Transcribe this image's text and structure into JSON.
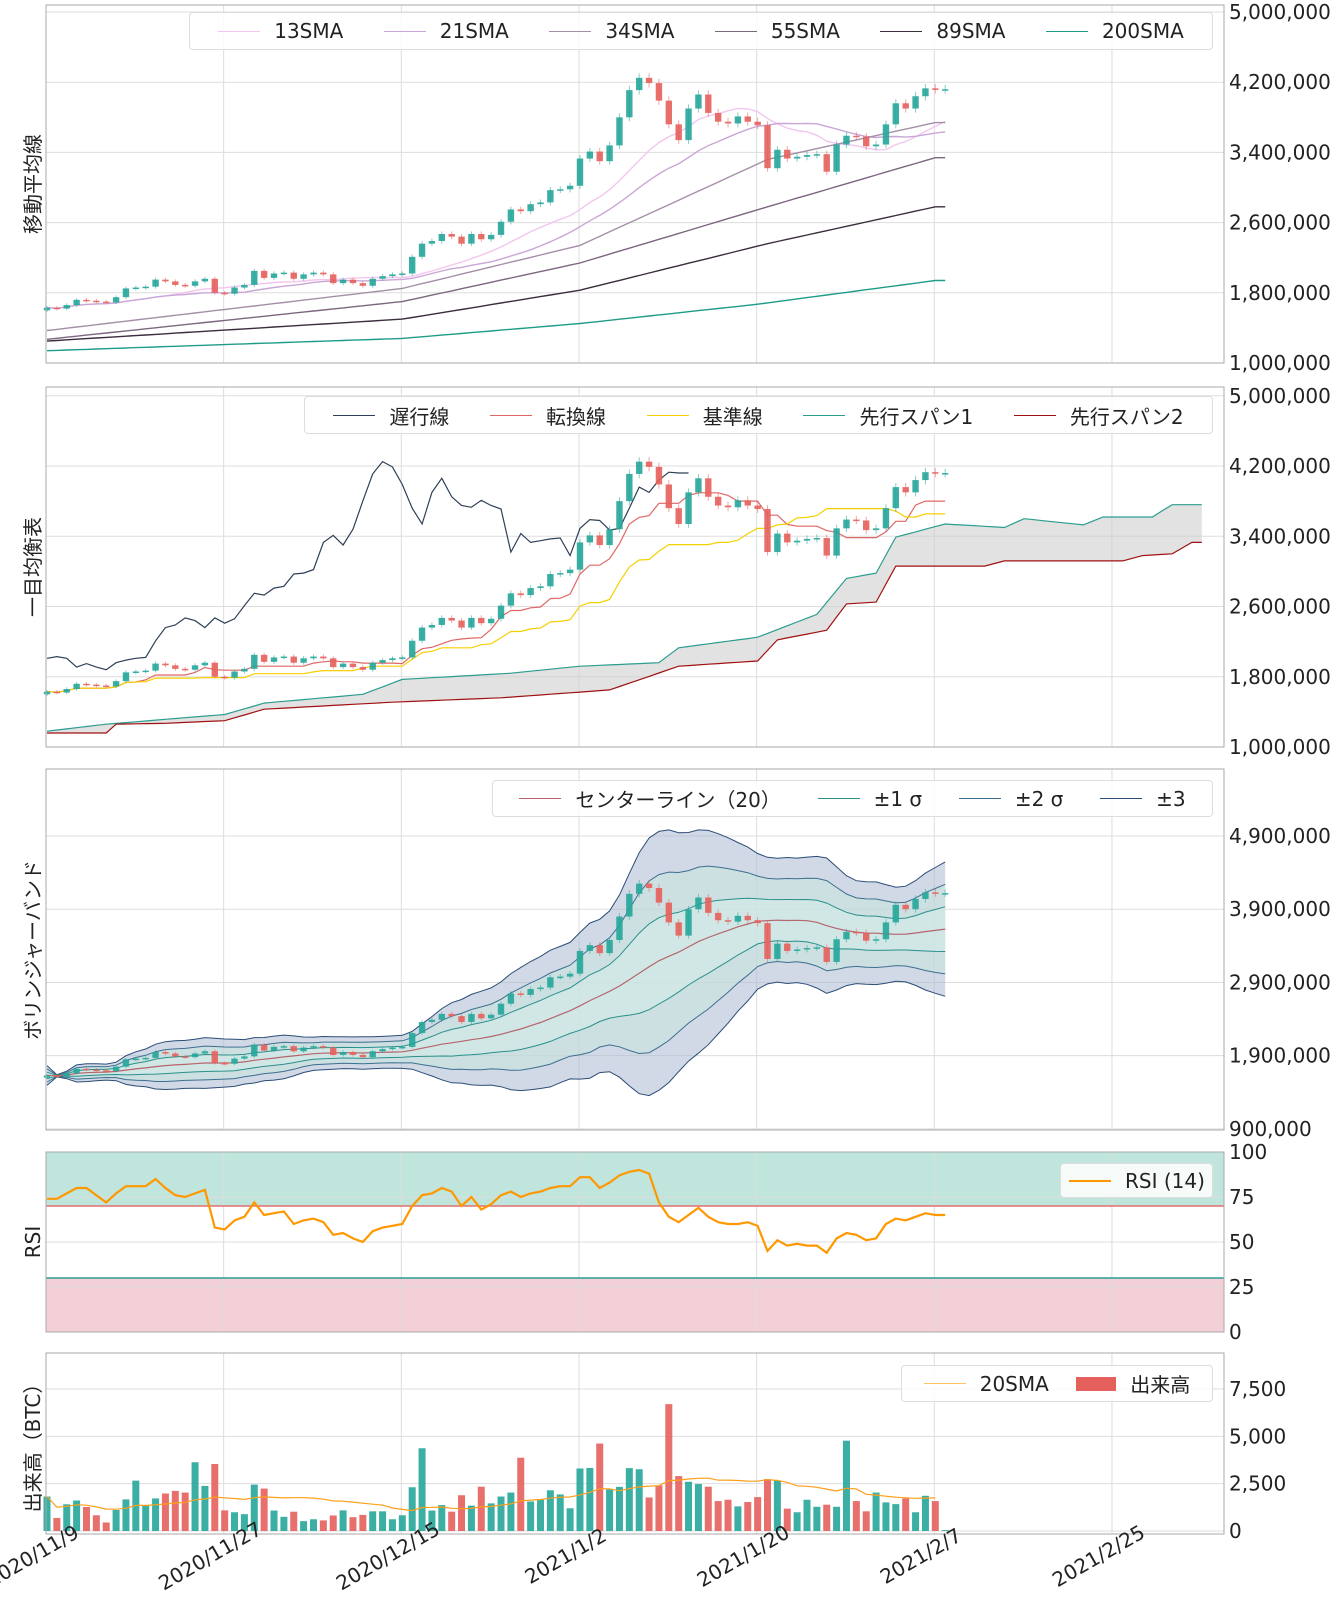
{
  "x_axis": {
    "ticks": [
      "2020/11/9",
      "2020/11/27",
      "2020/12/15",
      "2021/1/2",
      "2021/1/20",
      "2021/2/7",
      "2021/2/25"
    ],
    "xlim": [
      "2020/11/9",
      "2021/3/8"
    ]
  },
  "colors": {
    "up": "#26a69a",
    "down": "#e5605c",
    "grid": "#dddddd"
  },
  "chart_data": [
    {
      "type": "candlestick",
      "ylabel": "移動平均線",
      "yticks": [
        5000000,
        4200000,
        3400000,
        2600000,
        1800000,
        1000000
      ],
      "ylim": [
        1000000,
        5080000
      ],
      "grid": true,
      "legend_position": "top-right",
      "legend": [
        {
          "label": "13SMA",
          "color": "#f2c6f0"
        },
        {
          "label": "21SMA",
          "color": "#c9a6d6"
        },
        {
          "label": "34SMA",
          "color": "#a58fa8"
        },
        {
          "label": "55SMA",
          "color": "#7d6680"
        },
        {
          "label": "89SMA",
          "color": "#3a2d3c"
        },
        {
          "label": "200SMA",
          "color": "#1e9c88"
        }
      ],
      "candles": {
        "first_open": 1600000,
        "close": [
          1630000,
          1620000,
          1660000,
          1720000,
          1710000,
          1700000,
          1690000,
          1750000,
          1850000,
          1860000,
          1870000,
          1950000,
          1930000,
          1890000,
          1880000,
          1930000,
          1960000,
          1800000,
          1790000,
          1860000,
          1890000,
          2050000,
          1970000,
          2020000,
          2030000,
          1960000,
          2010000,
          2030000,
          2010000,
          1910000,
          1950000,
          1910000,
          1880000,
          1960000,
          1990000,
          2010000,
          2020000,
          2210000,
          2360000,
          2390000,
          2470000,
          2440000,
          2360000,
          2470000,
          2410000,
          2460000,
          2610000,
          2750000,
          2730000,
          2810000,
          2830000,
          2970000,
          2980000,
          3020000,
          3330000,
          3410000,
          3300000,
          3480000,
          3800000,
          4110000,
          4250000,
          4190000,
          3990000,
          3720000,
          3540000,
          3900000,
          4060000,
          3850000,
          3750000,
          3730000,
          3810000,
          3750000,
          3710000,
          3220000,
          3430000,
          3330000,
          3350000,
          3370000,
          3380000,
          3180000,
          3490000,
          3590000,
          3580000,
          3470000,
          3490000,
          3720000,
          3960000,
          3900000,
          4040000,
          4130000,
          4120000,
          4120000
        ]
      },
      "sma_anchors": {
        "34SMA": [
          [
            "2020/11/9",
            1370000
          ],
          [
            "2020/12/15",
            1850000
          ],
          [
            "2021/1/2",
            2340000
          ],
          [
            "2021/1/21",
            3320000
          ],
          [
            "2021/2/7",
            3740000
          ]
        ],
        "55SMA": [
          [
            "2020/11/9",
            1270000
          ],
          [
            "2020/12/15",
            1700000
          ],
          [
            "2021/1/2",
            2140000
          ],
          [
            "2021/1/21",
            2780000
          ],
          [
            "2021/2/7",
            3340000
          ]
        ],
        "89SMA": [
          [
            "2020/11/9",
            1250000
          ],
          [
            "2020/12/15",
            1500000
          ],
          [
            "2021/1/2",
            1830000
          ],
          [
            "2021/1/21",
            2360000
          ],
          [
            "2021/2/7",
            2780000
          ]
        ],
        "200SMA": [
          [
            "2020/11/9",
            1140000
          ],
          [
            "2020/12/15",
            1280000
          ],
          [
            "2021/1/2",
            1450000
          ],
          [
            "2021/1/20",
            1670000
          ],
          [
            "2021/2/7",
            1940000
          ]
        ]
      }
    },
    {
      "type": "candlestick",
      "ylabel": "一目均衡表",
      "yticks": [
        5000000,
        4200000,
        3400000,
        2600000,
        1800000,
        1000000
      ],
      "ylim": [
        1000000,
        5100000
      ],
      "grid": true,
      "legend_position": "top-right",
      "legend": [
        {
          "label": "遅行線",
          "color": "#2e4057"
        },
        {
          "label": "転換線",
          "color": "#e06666"
        },
        {
          "label": "基準線",
          "color": "#f5d000"
        },
        {
          "label": "先行スパン1",
          "color": "#2a9d8f"
        },
        {
          "label": "先行スパン2",
          "color": "#a01010"
        }
      ],
      "span1": [
        [
          "2020/11/9",
          1180000
        ],
        [
          "2020/11/15",
          1260000
        ],
        [
          "2020/11/27",
          1370000
        ],
        [
          "2020/12/1",
          1500000
        ],
        [
          "2020/12/11",
          1600000
        ],
        [
          "2020/12/15",
          1770000
        ],
        [
          "2020/12/26",
          1840000
        ],
        [
          "2021/1/2",
          1920000
        ],
        [
          "2021/1/10",
          1960000
        ],
        [
          "2021/1/12",
          2130000
        ],
        [
          "2021/1/20",
          2250000
        ],
        [
          "2021/1/26",
          2510000
        ],
        [
          "2021/1/29",
          2920000
        ],
        [
          "2021/2/1",
          2980000
        ],
        [
          "2021/2/3",
          3390000
        ],
        [
          "2021/2/8",
          3540000
        ],
        [
          "2021/2/14",
          3500000
        ],
        [
          "2021/2/16",
          3600000
        ],
        [
          "2021/2/22",
          3530000
        ],
        [
          "2021/2/24",
          3620000
        ],
        [
          "2021/3/1",
          3620000
        ],
        [
          "2021/3/3",
          3760000
        ],
        [
          "2021/3/6",
          3760000
        ]
      ],
      "span2": [
        [
          "2020/11/9",
          1160000
        ],
        [
          "2020/11/15",
          1160000
        ],
        [
          "2020/11/16",
          1260000
        ],
        [
          "2020/11/21",
          1270000
        ],
        [
          "2020/11/27",
          1300000
        ],
        [
          "2020/12/1",
          1430000
        ],
        [
          "2020/12/9",
          1480000
        ],
        [
          "2020/12/14",
          1510000
        ],
        [
          "2020/12/25",
          1560000
        ],
        [
          "2021/1/5",
          1650000
        ],
        [
          "2021/1/12",
          1920000
        ],
        [
          "2021/1/20",
          1980000
        ],
        [
          "2021/1/22",
          2220000
        ],
        [
          "2021/1/27",
          2330000
        ],
        [
          "2021/1/29",
          2630000
        ],
        [
          "2021/2/1",
          2650000
        ],
        [
          "2021/2/3",
          3060000
        ],
        [
          "2021/2/12",
          3060000
        ],
        [
          "2021/2/14",
          3120000
        ],
        [
          "2021/2/26",
          3120000
        ],
        [
          "2021/2/28",
          3180000
        ],
        [
          "2021/3/3",
          3200000
        ],
        [
          "2021/3/5",
          3330000
        ],
        [
          "2021/3/6",
          3330000
        ]
      ]
    },
    {
      "type": "candlestick",
      "ylabel": "ボリンジャーバンド",
      "yticks": [
        4900000,
        3900000,
        2900000,
        1900000,
        900000
      ],
      "ylim": [
        885000,
        5815000
      ],
      "grid": true,
      "legend_position": "top-right",
      "legend": [
        {
          "label": "センターライン（20）",
          "color": "#b5656d"
        },
        {
          "label": "±1 σ",
          "color": "#2a8f8a"
        },
        {
          "label": "±2 σ",
          "color": "#3d6f8f"
        },
        {
          "label": "±3",
          "color": "#2c4d78"
        }
      ]
    },
    {
      "type": "line",
      "ylabel": "RSI",
      "yticks": [
        100,
        75,
        50,
        25,
        0
      ],
      "ylim": [
        0,
        100
      ],
      "grid": true,
      "overbought": 70,
      "oversold": 30,
      "legend_position": "top-right",
      "legend": [
        {
          "label": "RSI (14)",
          "color": "#ff9800"
        }
      ],
      "values": [
        74,
        74,
        77,
        80,
        80,
        76,
        72,
        77,
        81,
        81,
        81,
        85,
        80,
        76,
        75,
        77,
        79,
        58,
        57,
        62,
        64,
        72,
        65,
        66,
        67,
        60,
        62,
        63,
        61,
        54,
        55,
        52,
        50,
        56,
        58,
        59,
        60,
        70,
        76,
        77,
        80,
        78,
        70,
        75,
        68,
        71,
        76,
        78,
        75,
        77,
        78,
        80,
        81,
        81,
        86,
        86,
        80,
        83,
        87,
        89,
        90,
        88,
        72,
        64,
        61,
        65,
        69,
        64,
        61,
        60,
        60,
        61,
        59,
        45,
        51,
        48,
        49,
        48,
        48,
        44,
        52,
        55,
        54,
        51,
        52,
        60,
        63,
        62,
        64,
        66,
        65,
        65
      ]
    },
    {
      "type": "bar",
      "ylabel": "出来高（BTC）",
      "yticks": [
        7500,
        5000,
        2500,
        0
      ],
      "ylim": [
        0,
        9400
      ],
      "grid": true,
      "legend_position": "top-right",
      "legend": [
        {
          "label": "20SMA",
          "color": "#ffc266"
        },
        {
          "label": "出来高",
          "color": "#e5605c"
        }
      ],
      "values": [
        1820,
        690,
        1410,
        1610,
        1270,
        830,
        450,
        1110,
        1670,
        2660,
        1340,
        1720,
        1980,
        2120,
        2030,
        3630,
        2380,
        3540,
        1090,
        990,
        890,
        2450,
        2240,
        1080,
        750,
        1020,
        520,
        620,
        560,
        820,
        1090,
        730,
        850,
        1040,
        1040,
        620,
        830,
        2310,
        4370,
        1080,
        1370,
        1020,
        1890,
        1340,
        2340,
        1460,
        1820,
        2030,
        3870,
        1560,
        1650,
        2150,
        1930,
        1200,
        3300,
        3330,
        4620,
        2200,
        2330,
        3320,
        3260,
        1770,
        2410,
        6700,
        2900,
        2600,
        2480,
        2340,
        1580,
        1650,
        1300,
        1530,
        1790,
        2740,
        2670,
        1180,
        990,
        1650,
        1280,
        1390,
        1280,
        4770,
        1580,
        1040,
        2030,
        1510,
        1420,
        1720,
        990,
        1860,
        1580,
        50
      ]
    }
  ]
}
